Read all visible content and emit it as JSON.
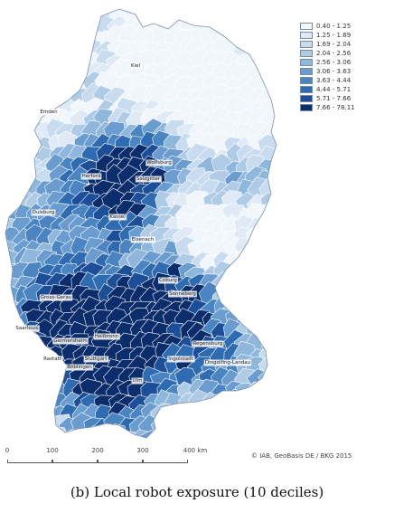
{
  "legend": {
    "title": "",
    "classes": [
      {
        "label": "0.40 - 1.25",
        "color": "#f1f6fc"
      },
      {
        "label": "1.25 - 1.69",
        "color": "#dfeaf6"
      },
      {
        "label": "1.69 - 2.04",
        "color": "#c9dcef"
      },
      {
        "label": "2.04 - 2.56",
        "color": "#afcbe6"
      },
      {
        "label": "2.56 - 3.06",
        "color": "#8fb6db"
      },
      {
        "label": "3.06 - 3.63",
        "color": "#6a9ccf"
      },
      {
        "label": "3.63 - 4.44",
        "color": "#4a84c1"
      },
      {
        "label": "4.44 - 5.71",
        "color": "#2f6bb0"
      },
      {
        "label": "5.71 - 7.66",
        "color": "#1c4f97"
      },
      {
        "label": "7.66 - 78.11",
        "color": "#0c2d6b"
      }
    ]
  },
  "cities": [
    {
      "name": "Kiel",
      "decile": 0
    },
    {
      "name": "Emden",
      "decile": 0
    },
    {
      "name": "Wolfsburg",
      "decile": 9
    },
    {
      "name": "Herford",
      "decile": 8
    },
    {
      "name": "Salzgitter",
      "decile": 7
    },
    {
      "name": "Kassel",
      "decile": 7
    },
    {
      "name": "Duisburg",
      "decile": 3
    },
    {
      "name": "Eisenach",
      "decile": 5
    },
    {
      "name": "Coburg",
      "decile": 8
    },
    {
      "name": "Gross-Gerau",
      "decile": 7
    },
    {
      "name": "Sonneberg",
      "decile": 6
    },
    {
      "name": "Saarlouis",
      "decile": 8
    },
    {
      "name": "Heilbronn",
      "decile": 7
    },
    {
      "name": "Germersheim",
      "decile": 8
    },
    {
      "name": "Regensburg",
      "decile": 7
    },
    {
      "name": "Ingolstadt",
      "decile": 9
    },
    {
      "name": "Dingolfing-Landau",
      "decile": 9
    },
    {
      "name": "Rastatt",
      "decile": 9
    },
    {
      "name": "Stuttgart",
      "decile": 7
    },
    {
      "name": "Böblingen",
      "decile": 9
    },
    {
      "name": "Ulm",
      "decile": 6
    }
  ],
  "scale": {
    "ticks": [
      "0",
      "100",
      "200",
      "300",
      "400 km"
    ]
  },
  "copyright": "© IAB, GeoBasis DE / BKG 2015",
  "caption": "(b) Local robot exposure (10 deciles)"
}
